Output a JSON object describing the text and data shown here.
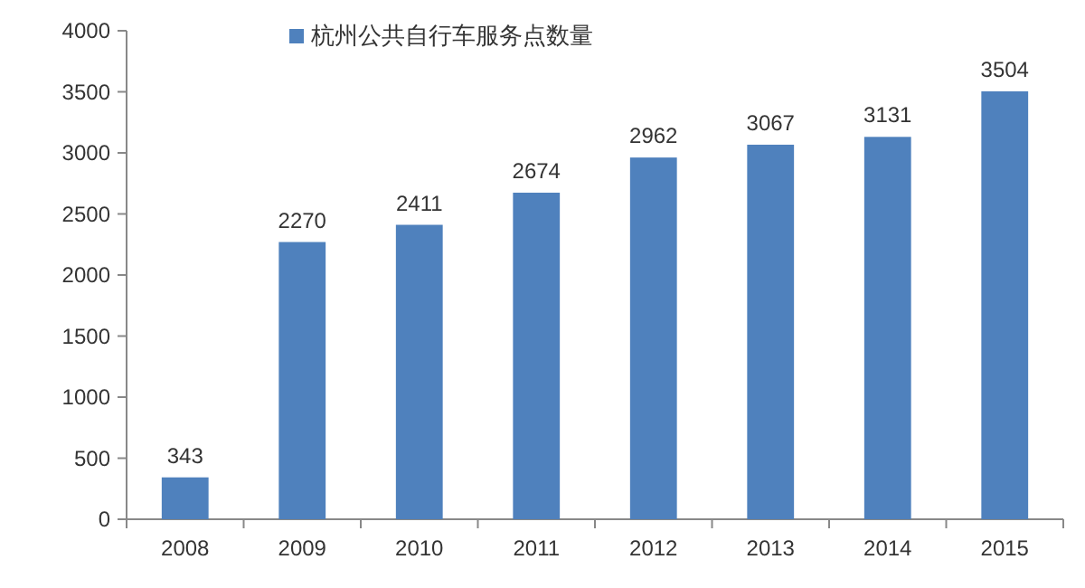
{
  "chart_data": {
    "type": "bar",
    "categories": [
      "2008",
      "2009",
      "2010",
      "2011",
      "2012",
      "2013",
      "2014",
      "2015"
    ],
    "series": [
      {
        "name": "杭州公共自行车服务点数量",
        "color": "#4f81bd",
        "values": [
          343,
          2270,
          2411,
          2674,
          2962,
          3067,
          3131,
          3504
        ]
      }
    ],
    "ylim": [
      0,
      4000
    ],
    "yticks": [
      0,
      500,
      1000,
      1500,
      2000,
      2500,
      3000,
      3500,
      4000
    ],
    "data_labels": true,
    "legend": "top left",
    "grid": false
  }
}
